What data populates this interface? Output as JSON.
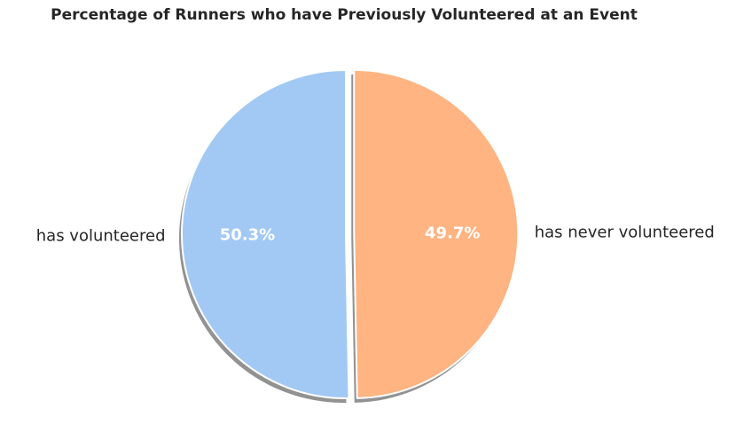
{
  "chart_data": {
    "type": "pie",
    "title": "Percentage of Runners who have Previously Volunteered at an Event",
    "slices": [
      {
        "label": "has volunteered",
        "value": 50.3,
        "pct_label": "50.3%",
        "color": "#a1c9f4",
        "explode": 0
      },
      {
        "label": "has never volunteered",
        "value": 49.7,
        "pct_label": "49.7%",
        "color": "#ffb482",
        "explode": 0.05
      }
    ],
    "start_angle_deg": 90,
    "direction": "counterclockwise",
    "shadow": true,
    "legend": "none"
  }
}
